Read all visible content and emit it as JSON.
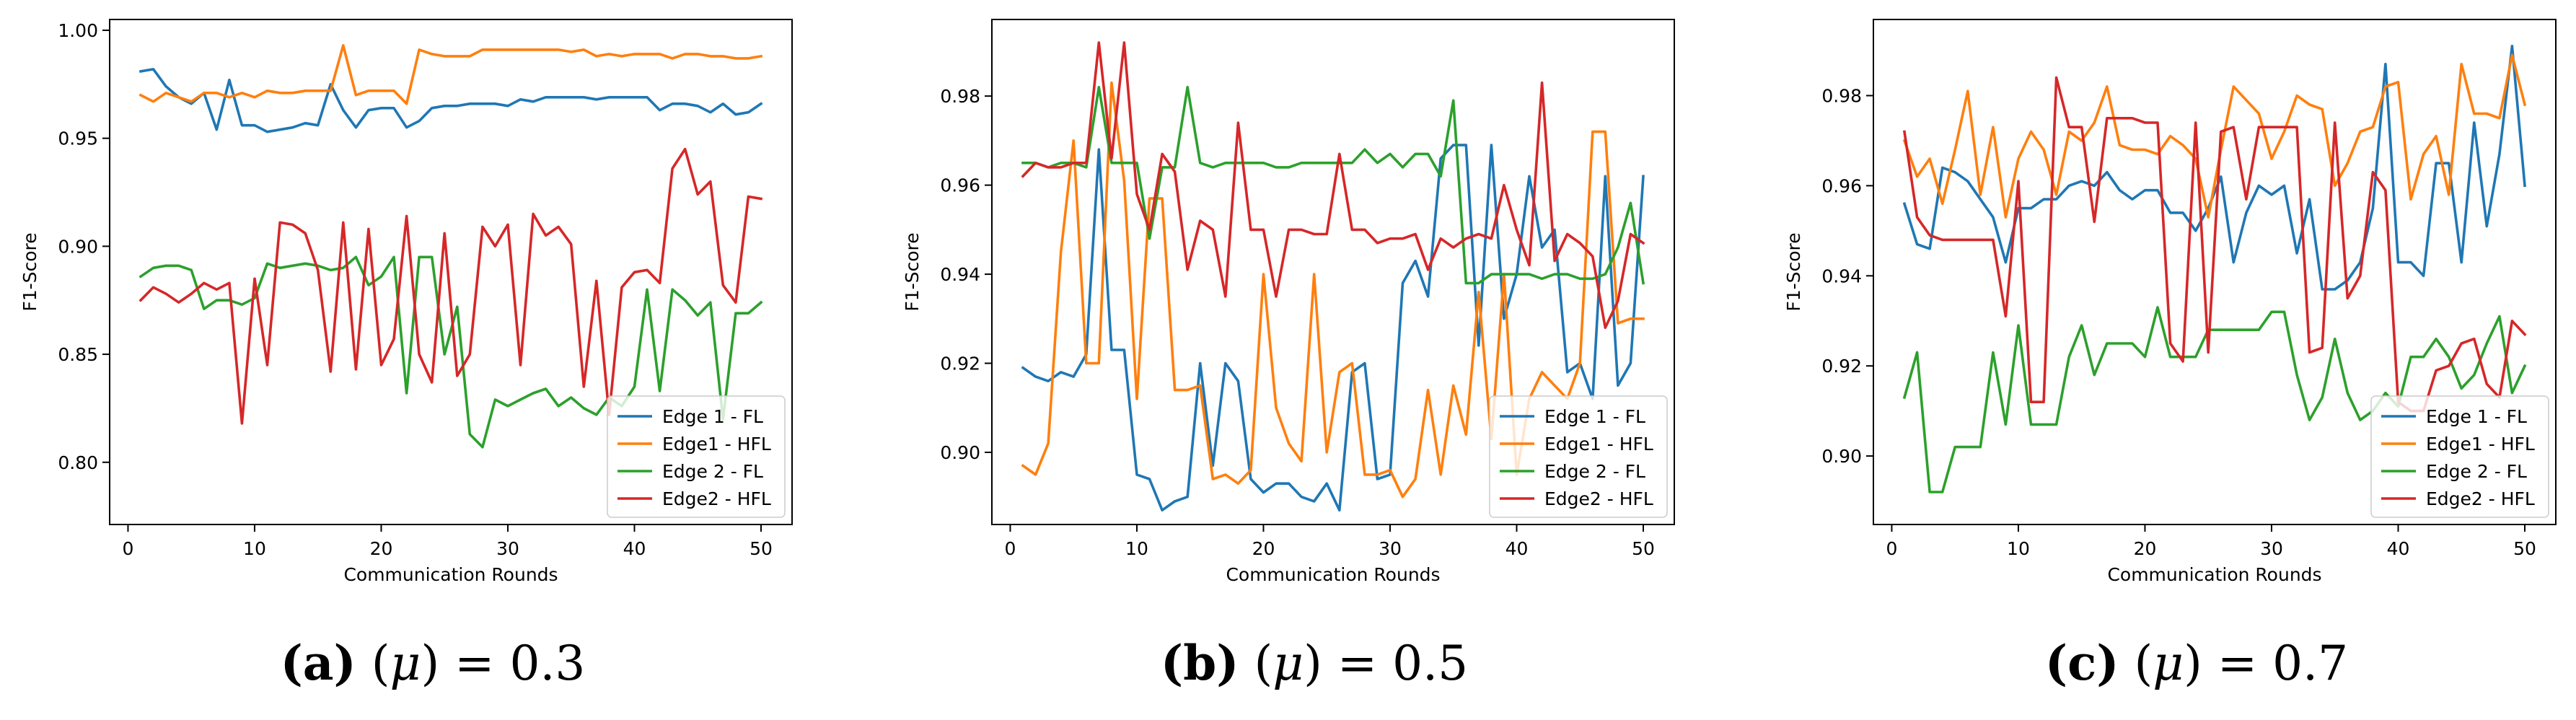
{
  "chart_data": [
    {
      "type": "line",
      "xlabel": "Communication Rounds",
      "ylabel": "F1-Score",
      "xlim": [
        -1.45,
        52.45
      ],
      "ylim": [
        0.7712,
        1.005
      ],
      "xticks": [
        0,
        10,
        20,
        30,
        40,
        50
      ],
      "yticks": [
        0.8,
        0.85,
        0.9,
        0.95,
        1.0
      ],
      "ytick_labels": [
        "0.80",
        "0.85",
        "0.90",
        "0.95",
        "1.00"
      ],
      "legend_position": "lower-right",
      "caption_label": "(a)",
      "caption_symbol": "μ",
      "caption_value": "0.3",
      "series": [
        {
          "name": "Edge 1 - FL",
          "color": "#1f77b4",
          "values": [
            0.981,
            0.982,
            0.974,
            0.969,
            0.966,
            0.971,
            0.954,
            0.977,
            0.956,
            0.956,
            0.953,
            0.954,
            0.955,
            0.957,
            0.956,
            0.975,
            0.963,
            0.955,
            0.963,
            0.964,
            0.964,
            0.955,
            0.958,
            0.964,
            0.965,
            0.965,
            0.966,
            0.966,
            0.966,
            0.965,
            0.968,
            0.967,
            0.969,
            0.969,
            0.969,
            0.969,
            0.968,
            0.969,
            0.969,
            0.969,
            0.969,
            0.963,
            0.966,
            0.966,
            0.965,
            0.962,
            0.966,
            0.961,
            0.962,
            0.966
          ]
        },
        {
          "name": "Edge1 - HFL",
          "color": "#ff7f0e",
          "values": [
            0.97,
            0.967,
            0.971,
            0.969,
            0.967,
            0.971,
            0.971,
            0.969,
            0.971,
            0.969,
            0.972,
            0.971,
            0.971,
            0.972,
            0.972,
            0.972,
            0.993,
            0.97,
            0.972,
            0.972,
            0.972,
            0.966,
            0.991,
            0.989,
            0.988,
            0.988,
            0.988,
            0.991,
            0.991,
            0.991,
            0.991,
            0.991,
            0.991,
            0.991,
            0.99,
            0.991,
            0.988,
            0.989,
            0.988,
            0.989,
            0.989,
            0.989,
            0.987,
            0.989,
            0.989,
            0.988,
            0.988,
            0.987,
            0.987,
            0.988
          ]
        },
        {
          "name": "Edge 2 - FL",
          "color": "#2ca02c",
          "values": [
            0.886,
            0.89,
            0.891,
            0.891,
            0.889,
            0.871,
            0.875,
            0.875,
            0.873,
            0.876,
            0.892,
            0.89,
            0.891,
            0.892,
            0.891,
            0.889,
            0.89,
            0.895,
            0.882,
            0.886,
            0.895,
            0.832,
            0.895,
            0.895,
            0.85,
            0.872,
            0.813,
            0.807,
            0.829,
            0.826,
            0.829,
            0.832,
            0.834,
            0.826,
            0.83,
            0.825,
            0.822,
            0.83,
            0.826,
            0.835,
            0.88,
            0.833,
            0.88,
            0.875,
            0.868,
            0.874,
            0.82,
            0.869,
            0.869,
            0.874
          ]
        },
        {
          "name": "Edge2 - HFL",
          "color": "#d62728",
          "values": [
            0.875,
            0.881,
            0.878,
            0.874,
            0.878,
            0.883,
            0.88,
            0.883,
            0.818,
            0.885,
            0.845,
            0.911,
            0.91,
            0.906,
            0.889,
            0.842,
            0.911,
            0.843,
            0.908,
            0.845,
            0.857,
            0.914,
            0.85,
            0.837,
            0.906,
            0.84,
            0.85,
            0.909,
            0.9,
            0.91,
            0.845,
            0.915,
            0.905,
            0.909,
            0.901,
            0.835,
            0.884,
            0.822,
            0.881,
            0.888,
            0.889,
            0.883,
            0.936,
            0.945,
            0.924,
            0.93,
            0.882,
            0.874,
            0.923,
            0.922
          ]
        }
      ]
    },
    {
      "type": "line",
      "xlabel": "Communication Rounds",
      "ylabel": "F1-Score",
      "xlim": [
        -1.45,
        52.45
      ],
      "ylim": [
        0.8838,
        0.9972
      ],
      "xticks": [
        0,
        10,
        20,
        30,
        40,
        50
      ],
      "yticks": [
        0.9,
        0.92,
        0.94,
        0.96,
        0.98
      ],
      "ytick_labels": [
        "0.90",
        "0.92",
        "0.94",
        "0.96",
        "0.98"
      ],
      "legend_position": "lower-right",
      "caption_label": "(b)",
      "caption_symbol": "μ",
      "caption_value": "0.5",
      "series": [
        {
          "name": "Edge 1 - FL",
          "color": "#1f77b4",
          "values": [
            0.919,
            0.917,
            0.916,
            0.918,
            0.917,
            0.922,
            0.968,
            0.923,
            0.923,
            0.895,
            0.894,
            0.887,
            0.889,
            0.89,
            0.92,
            0.897,
            0.92,
            0.916,
            0.894,
            0.891,
            0.893,
            0.893,
            0.89,
            0.889,
            0.893,
            0.887,
            0.918,
            0.92,
            0.894,
            0.895,
            0.938,
            0.943,
            0.935,
            0.966,
            0.969,
            0.969,
            0.924,
            0.969,
            0.93,
            0.94,
            0.962,
            0.946,
            0.95,
            0.918,
            0.92,
            0.912,
            0.962,
            0.915,
            0.92,
            0.962
          ]
        },
        {
          "name": "Edge1 - HFL",
          "color": "#ff7f0e",
          "values": [
            0.897,
            0.895,
            0.902,
            0.945,
            0.97,
            0.92,
            0.92,
            0.983,
            0.961,
            0.912,
            0.957,
            0.957,
            0.914,
            0.914,
            0.915,
            0.894,
            0.895,
            0.893,
            0.896,
            0.94,
            0.91,
            0.902,
            0.898,
            0.94,
            0.9,
            0.918,
            0.92,
            0.895,
            0.895,
            0.896,
            0.89,
            0.894,
            0.914,
            0.895,
            0.915,
            0.904,
            0.936,
            0.903,
            0.94,
            0.895,
            0.912,
            0.918,
            0.915,
            0.912,
            0.92,
            0.972,
            0.972,
            0.929,
            0.93,
            0.93
          ]
        },
        {
          "name": "Edge 2 - FL",
          "color": "#2ca02c",
          "values": [
            0.965,
            0.965,
            0.964,
            0.965,
            0.965,
            0.964,
            0.982,
            0.965,
            0.965,
            0.965,
            0.948,
            0.964,
            0.964,
            0.982,
            0.965,
            0.964,
            0.965,
            0.965,
            0.965,
            0.965,
            0.964,
            0.964,
            0.965,
            0.965,
            0.965,
            0.965,
            0.965,
            0.968,
            0.965,
            0.967,
            0.964,
            0.967,
            0.967,
            0.962,
            0.979,
            0.938,
            0.938,
            0.94,
            0.94,
            0.94,
            0.94,
            0.939,
            0.94,
            0.94,
            0.939,
            0.939,
            0.94,
            0.946,
            0.956,
            0.938
          ]
        },
        {
          "name": "Edge2 - HFL",
          "color": "#d62728",
          "values": [
            0.962,
            0.965,
            0.964,
            0.964,
            0.965,
            0.965,
            0.992,
            0.966,
            0.992,
            0.958,
            0.95,
            0.967,
            0.963,
            0.941,
            0.952,
            0.95,
            0.935,
            0.974,
            0.95,
            0.95,
            0.935,
            0.95,
            0.95,
            0.949,
            0.949,
            0.967,
            0.95,
            0.95,
            0.947,
            0.948,
            0.948,
            0.949,
            0.941,
            0.948,
            0.946,
            0.948,
            0.949,
            0.948,
            0.96,
            0.95,
            0.942,
            0.983,
            0.943,
            0.949,
            0.947,
            0.944,
            0.928,
            0.934,
            0.949,
            0.947
          ]
        }
      ]
    },
    {
      "type": "line",
      "xlabel": "Communication Rounds",
      "ylabel": "F1-Score",
      "xlim": [
        -1.45,
        52.45
      ],
      "ylim": [
        0.8848,
        0.9969
      ],
      "xticks": [
        0,
        10,
        20,
        30,
        40,
        50
      ],
      "yticks": [
        0.9,
        0.92,
        0.94,
        0.96,
        0.98
      ],
      "ytick_labels": [
        "0.90",
        "0.92",
        "0.94",
        "0.96",
        "0.98"
      ],
      "legend_position": "lower-right",
      "caption_label": "(c)",
      "caption_symbol": "μ",
      "caption_value": "0.7",
      "series": [
        {
          "name": "Edge 1 - FL",
          "color": "#1f77b4",
          "values": [
            0.956,
            0.947,
            0.946,
            0.964,
            0.963,
            0.961,
            0.957,
            0.953,
            0.943,
            0.955,
            0.955,
            0.957,
            0.957,
            0.96,
            0.961,
            0.96,
            0.963,
            0.959,
            0.957,
            0.959,
            0.959,
            0.954,
            0.954,
            0.95,
            0.955,
            0.962,
            0.943,
            0.954,
            0.96,
            0.958,
            0.96,
            0.945,
            0.957,
            0.937,
            0.937,
            0.939,
            0.943,
            0.955,
            0.987,
            0.943,
            0.943,
            0.94,
            0.965,
            0.965,
            0.943,
            0.974,
            0.951,
            0.967,
            0.991,
            0.96
          ]
        },
        {
          "name": "Edge1 - HFL",
          "color": "#ff7f0e",
          "values": [
            0.97,
            0.962,
            0.966,
            0.956,
            0.968,
            0.981,
            0.958,
            0.973,
            0.953,
            0.966,
            0.972,
            0.968,
            0.958,
            0.972,
            0.97,
            0.974,
            0.982,
            0.969,
            0.968,
            0.968,
            0.967,
            0.971,
            0.969,
            0.966,
            0.953,
            0.968,
            0.982,
            0.979,
            0.976,
            0.966,
            0.972,
            0.98,
            0.978,
            0.977,
            0.96,
            0.965,
            0.972,
            0.973,
            0.982,
            0.983,
            0.957,
            0.967,
            0.971,
            0.958,
            0.987,
            0.976,
            0.976,
            0.975,
            0.989,
            0.978
          ]
        },
        {
          "name": "Edge 2 - FL",
          "color": "#2ca02c",
          "values": [
            0.913,
            0.923,
            0.892,
            0.892,
            0.902,
            0.902,
            0.902,
            0.923,
            0.907,
            0.929,
            0.907,
            0.907,
            0.907,
            0.922,
            0.929,
            0.918,
            0.925,
            0.925,
            0.925,
            0.922,
            0.933,
            0.922,
            0.922,
            0.922,
            0.928,
            0.928,
            0.928,
            0.928,
            0.928,
            0.932,
            0.932,
            0.918,
            0.908,
            0.913,
            0.926,
            0.914,
            0.908,
            0.91,
            0.914,
            0.911,
            0.922,
            0.922,
            0.926,
            0.922,
            0.915,
            0.918,
            0.925,
            0.931,
            0.914,
            0.92
          ]
        },
        {
          "name": "Edge2 - HFL",
          "color": "#d62728",
          "values": [
            0.972,
            0.953,
            0.949,
            0.948,
            0.948,
            0.948,
            0.948,
            0.948,
            0.931,
            0.961,
            0.912,
            0.912,
            0.984,
            0.973,
            0.973,
            0.952,
            0.975,
            0.975,
            0.975,
            0.974,
            0.974,
            0.925,
            0.921,
            0.974,
            0.923,
            0.972,
            0.973,
            0.957,
            0.973,
            0.973,
            0.973,
            0.973,
            0.923,
            0.924,
            0.974,
            0.935,
            0.94,
            0.963,
            0.959,
            0.912,
            0.91,
            0.91,
            0.919,
            0.92,
            0.925,
            0.926,
            0.916,
            0.913,
            0.93,
            0.927
          ]
        }
      ]
    }
  ]
}
